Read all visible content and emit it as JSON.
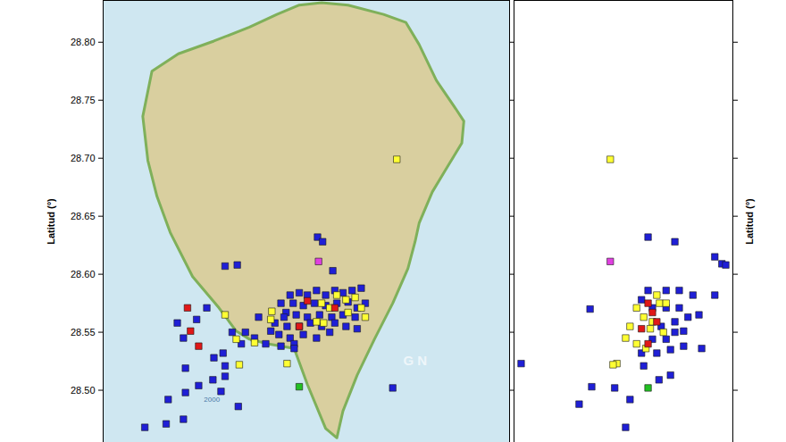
{
  "chart_data": [
    {
      "type": "scatter",
      "ylabel": "Latitud (°)",
      "tick_labels": "y",
      "xlim": [
        -18.08,
        -17.68
      ],
      "ylim": [
        28.455,
        28.836
      ],
      "yticks": [
        {
          "value": 28.5,
          "label": "28.50"
        },
        28.55,
        {
          "value": 28.6,
          "label": "28.60"
        },
        28.65,
        {
          "value": 28.7,
          "label": "28.70"
        },
        28.75,
        {
          "value": 28.8,
          "label": "28.80"
        }
      ],
      "island": [
        [
          -17.887,
          28.832
        ],
        [
          -17.865,
          28.834
        ],
        [
          -17.839,
          28.832
        ],
        [
          -17.804,
          28.824
        ],
        [
          -17.782,
          28.817
        ],
        [
          -17.769,
          28.798
        ],
        [
          -17.752,
          28.767
        ],
        [
          -17.734,
          28.744
        ],
        [
          -17.725,
          28.732
        ],
        [
          -17.727,
          28.713
        ],
        [
          -17.743,
          28.69
        ],
        [
          -17.756,
          28.671
        ],
        [
          -17.769,
          28.644
        ],
        [
          -17.773,
          28.628
        ],
        [
          -17.78,
          28.605
        ],
        [
          -17.795,
          28.575
        ],
        [
          -17.813,
          28.544
        ],
        [
          -17.83,
          28.513
        ],
        [
          -17.844,
          28.482
        ],
        [
          -17.85,
          28.459
        ],
        [
          -17.861,
          28.467
        ],
        [
          -17.879,
          28.505
        ],
        [
          -17.892,
          28.536
        ],
        [
          -17.918,
          28.54
        ],
        [
          -17.936,
          28.544
        ],
        [
          -17.949,
          28.551
        ],
        [
          -17.966,
          28.571
        ],
        [
          -17.992,
          28.598
        ],
        [
          -18.014,
          28.636
        ],
        [
          -18.027,
          28.667
        ],
        [
          -18.036,
          28.698
        ],
        [
          -18.041,
          28.736
        ],
        [
          -18.032,
          28.775
        ],
        [
          -18.006,
          28.79
        ],
        [
          -17.971,
          28.801
        ],
        [
          -17.936,
          28.813
        ],
        [
          -17.909,
          28.824
        ],
        [
          -17.887,
          28.832
        ]
      ],
      "annotations": [
        {
          "text": "G N",
          "x": -17.773,
          "y": 28.525
        },
        {
          "text": "2000",
          "x": -17.973,
          "y": 28.492
        }
      ],
      "series": [
        {
          "color": "#1f1fd6",
          "marker": "square",
          "points": [
            [
              -17.869,
              28.632
            ],
            [
              -17.864,
              28.628
            ],
            [
              -17.854,
              28.603
            ],
            [
              -17.948,
              28.608
            ],
            [
              -17.96,
              28.607
            ],
            [
              -17.978,
              28.571
            ],
            [
              -17.927,
              28.563
            ],
            [
              -17.896,
              28.582
            ],
            [
              -17.887,
              28.584
            ],
            [
              -17.879,
              28.582
            ],
            [
              -17.87,
              28.586
            ],
            [
              -17.861,
              28.582
            ],
            [
              -17.852,
              28.586
            ],
            [
              -17.844,
              28.584
            ],
            [
              -17.835,
              28.586
            ],
            [
              -17.826,
              28.588
            ],
            [
              -17.905,
              28.575
            ],
            [
              -17.893,
              28.575
            ],
            [
              -17.883,
              28.573
            ],
            [
              -17.872,
              28.575
            ],
            [
              -17.861,
              28.573
            ],
            [
              -17.85,
              28.575
            ],
            [
              -17.839,
              28.576
            ],
            [
              -17.83,
              28.571
            ],
            [
              -17.822,
              28.575
            ],
            [
              -17.9,
              28.567
            ],
            [
              -17.89,
              28.565
            ],
            [
              -17.879,
              28.563
            ],
            [
              -17.867,
              28.565
            ],
            [
              -17.855,
              28.563
            ],
            [
              -17.844,
              28.565
            ],
            [
              -17.832,
              28.563
            ],
            [
              -17.911,
              28.558
            ],
            [
              -17.899,
              28.555
            ],
            [
              -17.887,
              28.555
            ],
            [
              -17.876,
              28.558
            ],
            [
              -17.865,
              28.555
            ],
            [
              -17.852,
              28.558
            ],
            [
              -17.841,
              28.555
            ],
            [
              -17.83,
              28.553
            ],
            [
              -17.907,
              28.548
            ],
            [
              -17.896,
              28.545
            ],
            [
              -17.883,
              28.548
            ],
            [
              -17.87,
              28.545
            ],
            [
              -17.857,
              28.55
            ],
            [
              -17.92,
              28.54
            ],
            [
              -17.905,
              28.538
            ],
            [
              -17.892,
              28.54
            ],
            [
              -17.931,
              28.545
            ],
            [
              -17.94,
              28.55
            ],
            [
              -17.944,
              28.54
            ],
            [
              -17.953,
              28.55
            ],
            [
              -18.007,
              28.558
            ],
            [
              -17.988,
              28.561
            ],
            [
              -18.001,
              28.545
            ],
            [
              -17.962,
              28.532
            ],
            [
              -17.971,
              28.528
            ],
            [
              -17.96,
              28.521
            ],
            [
              -17.96,
              28.512
            ],
            [
              -17.972,
              28.509
            ],
            [
              -17.964,
              28.499
            ],
            [
              -17.999,
              28.519
            ],
            [
              -17.999,
              28.498
            ],
            [
              -17.986,
              28.504
            ],
            [
              -18.016,
              28.492
            ],
            [
              -18.001,
              28.475
            ],
            [
              -18.018,
              28.471
            ],
            [
              -18.039,
              28.468
            ],
            [
              -17.947,
              28.486
            ],
            [
              -17.795,
              28.502
            ],
            [
              -17.892,
              28.536
            ],
            [
              -17.915,
              28.551
            ],
            [
              -17.902,
              28.563
            ]
          ]
        },
        {
          "color": "#ffff33",
          "marker": "square",
          "points": [
            [
              -17.791,
              28.699
            ],
            [
              -17.96,
              28.565
            ],
            [
              -17.915,
              28.561
            ],
            [
              -17.949,
              28.544
            ],
            [
              -17.931,
              28.541
            ],
            [
              -17.946,
              28.522
            ],
            [
              -17.899,
              28.523
            ],
            [
              -17.85,
              28.582
            ],
            [
              -17.841,
              28.578
            ],
            [
              -17.832,
              28.58
            ],
            [
              -17.826,
              28.571
            ],
            [
              -17.857,
              28.571
            ],
            [
              -17.822,
              28.563
            ],
            [
              -17.865,
              28.575
            ],
            [
              -17.87,
              28.559
            ],
            [
              -17.863,
              28.558
            ],
            [
              -17.914,
              28.568
            ],
            [
              -17.839,
              28.567
            ]
          ]
        },
        {
          "color": "#e01818",
          "marker": "square",
          "points": [
            [
              -17.997,
              28.571
            ],
            [
              -17.994,
              28.551
            ],
            [
              -17.986,
              28.538
            ],
            [
              -17.879,
              28.577
            ],
            [
              -17.852,
              28.571
            ],
            [
              -17.887,
              28.555
            ]
          ]
        },
        {
          "color": "#e040e0",
          "marker": "square",
          "points": [
            [
              -17.868,
              28.611
            ]
          ]
        },
        {
          "color": "#22c022",
          "marker": "square",
          "points": [
            [
              -17.887,
              28.503
            ]
          ]
        }
      ]
    },
    {
      "type": "scatter",
      "ylabel": "Latitud (°)",
      "tick_labels": false,
      "xlim": [
        0,
        40
      ],
      "ylim": [
        28.455,
        28.836
      ],
      "yticks": [
        28.5,
        28.55,
        28.6,
        28.65,
        28.7,
        28.75,
        28.8
      ],
      "series": [
        {
          "color": "#1f1fd6",
          "marker": "square",
          "points": [
            [
              24.5,
              28.632
            ],
            [
              29.4,
              28.628
            ],
            [
              36.7,
              28.615
            ],
            [
              38.0,
              28.609
            ],
            [
              38.7,
              28.608
            ],
            [
              13.9,
              28.57
            ],
            [
              1.3,
              28.523
            ],
            [
              11.9,
              28.488
            ],
            [
              14.2,
              28.503
            ],
            [
              18.4,
              28.502
            ],
            [
              20.4,
              28.468
            ],
            [
              21.2,
              28.492
            ],
            [
              23.7,
              28.521
            ],
            [
              26.5,
              28.509
            ],
            [
              28.6,
              28.513
            ],
            [
              34.3,
              28.536
            ],
            [
              33.8,
              28.565
            ],
            [
              32.7,
              28.582
            ],
            [
              36.7,
              28.582
            ],
            [
              30.2,
              28.586
            ],
            [
              27.8,
              28.586
            ],
            [
              24.5,
              28.586
            ],
            [
              23.3,
              28.578
            ],
            [
              25.3,
              28.571
            ],
            [
              27.8,
              28.571
            ],
            [
              30.2,
              28.571
            ],
            [
              31.8,
              28.563
            ],
            [
              29.4,
              28.559
            ],
            [
              26.9,
              28.555
            ],
            [
              29.4,
              28.55
            ],
            [
              31.0,
              28.551
            ],
            [
              27.8,
              28.544
            ],
            [
              25.3,
              28.544
            ],
            [
              28.6,
              28.535
            ],
            [
              26.1,
              28.532
            ],
            [
              23.3,
              28.532
            ],
            [
              31.0,
              28.538
            ]
          ]
        },
        {
          "color": "#ffff33",
          "marker": "square",
          "points": [
            [
              17.6,
              28.699
            ],
            [
              22.4,
              28.571
            ],
            [
              23.7,
              28.563
            ],
            [
              25.3,
              28.559
            ],
            [
              26.6,
              28.575
            ],
            [
              27.3,
              28.55
            ],
            [
              24.9,
              28.553
            ],
            [
              21.2,
              28.555
            ],
            [
              20.4,
              28.545
            ],
            [
              22.4,
              28.54
            ],
            [
              24.1,
              28.536
            ],
            [
              18.8,
              28.523
            ],
            [
              18.1,
              28.522
            ],
            [
              26.1,
              28.582
            ],
            [
              27.8,
              28.575
            ]
          ]
        },
        {
          "color": "#e01818",
          "marker": "square",
          "points": [
            [
              24.5,
              28.575
            ],
            [
              23.3,
              28.553
            ],
            [
              24.5,
              28.54
            ],
            [
              26.1,
              28.559
            ],
            [
              25.3,
              28.567
            ]
          ]
        },
        {
          "color": "#e040e0",
          "marker": "square",
          "points": [
            [
              17.6,
              28.611
            ]
          ]
        },
        {
          "color": "#22c022",
          "marker": "square",
          "points": [
            [
              24.5,
              28.502
            ]
          ]
        }
      ]
    }
  ]
}
